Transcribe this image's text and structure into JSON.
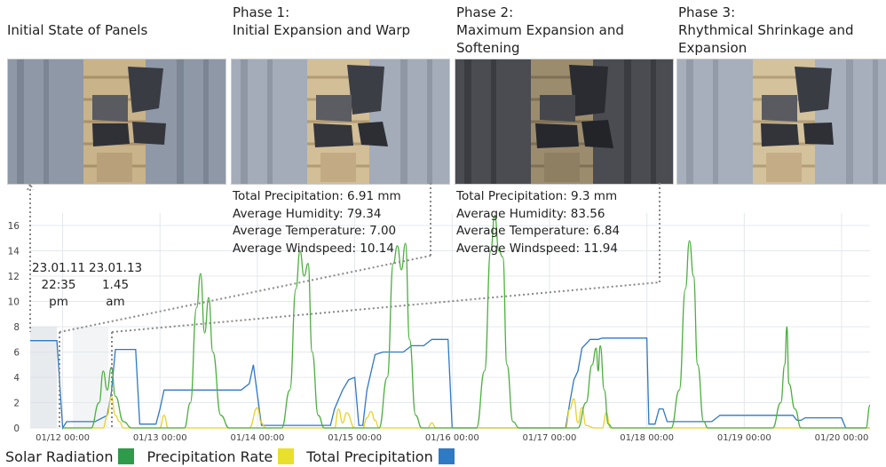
{
  "phases": [
    {
      "title": "Initial State of Panels"
    },
    {
      "title": "Phase 1:\nInitial Expansion and Warp"
    },
    {
      "title": "Phase 2:\nMaximum Expansion and\nSoftening"
    },
    {
      "title": "Phase 3:\nRhythmical Shrinkage and\nExpansion"
    }
  ],
  "stats": [
    {
      "precip": "Total Precipitation: 6.91 mm",
      "humidity": "Average Humidity: 79.34",
      "temperature": "Average Temperature: 7.00",
      "windspeed": "Average Windspeed: 10.14"
    },
    {
      "precip": "Total Precipitation: 9.3 mm",
      "humidity": "Average Humidity: 83.56",
      "temperature": "Average Temperature: 6.84",
      "windspeed": "Average Windspeed: 11.94"
    }
  ],
  "annotations": [
    {
      "line1": "23.01.11",
      "line2": "22:35",
      "line3": "pm"
    },
    {
      "line1": "23.01.13",
      "line2": "1.45",
      "line3": "am"
    }
  ],
  "colors": {
    "solar": "#4caf3f",
    "rate": "#e8d22a",
    "total": "#2f78c4",
    "legend_solar": "#2e9b4a",
    "legend_rate": "#e8e02a",
    "legend_total": "#2f7ac4",
    "grid": "#e4e8ec"
  },
  "legend": [
    {
      "label": "Solar Radiation"
    },
    {
      "label": "Precipitation Rate"
    },
    {
      "label": "Total Precipitation"
    }
  ],
  "chart_data": {
    "type": "line",
    "x_ticks": [
      "01/12 00:00",
      "01/13 00:00",
      "01/14 00:00",
      "01/15 00:00",
      "01/16 00:00",
      "01/17 00:00",
      "01/18 00:00",
      "01/19 00:00",
      "01/20 00:00"
    ],
    "y_ticks": [
      0,
      2,
      4,
      6,
      8,
      10,
      12,
      14,
      16
    ],
    "xlim": [
      "01/11 16:00",
      "01/20 07:00"
    ],
    "ylim": [
      0,
      17
    ],
    "grid": true,
    "shaded_region": [
      "01/11 16:00",
      "01/11 22:35"
    ],
    "series": [
      {
        "name": "Solar Radiation",
        "color_key": "solar",
        "points": [
          [
            "01/12 00:00",
            0
          ],
          [
            "01/12 07:00",
            0
          ],
          [
            "01/12 09:00",
            2
          ],
          [
            "01/12 10:00",
            4.5
          ],
          [
            "01/12 11:00",
            3
          ],
          [
            "01/12 12:00",
            4.8
          ],
          [
            "01/12 13:00",
            2.5
          ],
          [
            "01/12 15:00",
            0.5
          ],
          [
            "01/12 17:00",
            0
          ],
          [
            "01/13 06:00",
            0
          ],
          [
            "01/13 07:30",
            2
          ],
          [
            "01/13 09:00",
            9.5
          ],
          [
            "01/13 10:00",
            12.2
          ],
          [
            "01/13 11:00",
            7.5
          ],
          [
            "01/13 12:00",
            10.3
          ],
          [
            "01/13 13:00",
            6
          ],
          [
            "01/13 15:00",
            1
          ],
          [
            "01/13 17:00",
            0
          ],
          [
            "01/14 06:00",
            0
          ],
          [
            "01/14 08:00",
            3
          ],
          [
            "01/14 09:30",
            11
          ],
          [
            "01/14 10:30",
            14
          ],
          [
            "01/14 11:30",
            12
          ],
          [
            "01/14 12:30",
            13
          ],
          [
            "01/14 13:30",
            6
          ],
          [
            "01/14 15:00",
            1
          ],
          [
            "01/14 16:30",
            0
          ],
          [
            "01/15 06:00",
            0
          ],
          [
            "01/15 08:00",
            4
          ],
          [
            "01/15 09:30",
            13
          ],
          [
            "01/15 10:30",
            14.4
          ],
          [
            "01/15 11:30",
            12.5
          ],
          [
            "01/15 12:30",
            14.6
          ],
          [
            "01/15 13:30",
            7
          ],
          [
            "01/15 15:00",
            1
          ],
          [
            "01/15 16:30",
            0
          ],
          [
            "01/16 06:00",
            0
          ],
          [
            "01/16 08:00",
            4.5
          ],
          [
            "01/16 09:30",
            14
          ],
          [
            "01/16 10:30",
            16.8
          ],
          [
            "01/16 11:30",
            14
          ],
          [
            "01/16 12:30",
            13.5
          ],
          [
            "01/16 13:30",
            5
          ],
          [
            "01/16 15:00",
            0.5
          ],
          [
            "01/16 16:30",
            0
          ],
          [
            "01/17 07:00",
            0
          ],
          [
            "01/17 09:00",
            2
          ],
          [
            "01/17 10:30",
            5
          ],
          [
            "01/17 11:30",
            6.3
          ],
          [
            "01/17 12:00",
            4.5
          ],
          [
            "01/17 12:30",
            6.5
          ],
          [
            "01/17 13:30",
            3
          ],
          [
            "01/17 14:30",
            0.3
          ],
          [
            "01/17 15:30",
            0
          ],
          [
            "01/18 06:00",
            0
          ],
          [
            "01/18 08:00",
            3
          ],
          [
            "01/18 09:30",
            11
          ],
          [
            "01/18 10:30",
            14.8
          ],
          [
            "01/18 11:30",
            12
          ],
          [
            "01/18 12:30",
            5
          ],
          [
            "01/18 14:00",
            0.5
          ],
          [
            "01/18 15:00",
            0
          ],
          [
            "01/19 07:00",
            0
          ],
          [
            "01/19 09:00",
            2
          ],
          [
            "01/19 10:00",
            5
          ],
          [
            "01/19 10:30",
            8
          ],
          [
            "01/19 11:00",
            3.5
          ],
          [
            "01/19 12:30",
            1.5
          ],
          [
            "01/19 14:00",
            0
          ],
          [
            "01/20 06:00",
            0
          ],
          [
            "01/20 07:00",
            1.8
          ]
        ]
      },
      {
        "name": "Precipitation Rate",
        "color_key": "rate",
        "points": [
          [
            "01/12 00:00",
            0
          ],
          [
            "01/12 10:00",
            0
          ],
          [
            "01/12 11:00",
            1
          ],
          [
            "01/12 12:00",
            2.5
          ],
          [
            "01/12 13:00",
            1
          ],
          [
            "01/12 14:00",
            0.5
          ],
          [
            "01/12 15:00",
            0
          ],
          [
            "01/13 00:00",
            0
          ],
          [
            "01/13 01:00",
            1
          ],
          [
            "01/13 02:00",
            0
          ],
          [
            "01/13 22:00",
            0
          ],
          [
            "01/14 00:00",
            1.6
          ],
          [
            "01/14 01:00",
            0.4
          ],
          [
            "01/14 02:00",
            0
          ],
          [
            "01/14 19:00",
            0
          ],
          [
            "01/14 20:00",
            1.5
          ],
          [
            "01/14 21:00",
            0.4
          ],
          [
            "01/14 22:00",
            1.2
          ],
          [
            "01/15 00:00",
            0
          ],
          [
            "01/15 02:00",
            0
          ],
          [
            "01/15 03:00",
            0.8
          ],
          [
            "01/15 04:00",
            1.3
          ],
          [
            "01/15 05:00",
            0.6
          ],
          [
            "01/15 06:00",
            0
          ],
          [
            "01/15 18:00",
            0
          ],
          [
            "01/15 19:00",
            0.4
          ],
          [
            "01/15 20:00",
            0
          ],
          [
            "01/17 04:00",
            0
          ],
          [
            "01/17 05:00",
            1.5
          ],
          [
            "01/17 06:00",
            2.3
          ],
          [
            "01/17 07:00",
            0.4
          ],
          [
            "01/17 08:00",
            1.6
          ],
          [
            "01/17 09:00",
            0.2
          ],
          [
            "01/17 11:00",
            0
          ],
          [
            "01/17 13:00",
            0
          ],
          [
            "01/17 14:00",
            1.2
          ],
          [
            "01/17 15:00",
            0
          ],
          [
            "01/20 07:00",
            0
          ]
        ]
      },
      {
        "name": "Total Precipitation",
        "color_key": "total",
        "points": [
          [
            "01/11 16:00",
            6.9
          ],
          [
            "01/11 22:35",
            6.9
          ],
          [
            "01/12 00:00",
            0
          ],
          [
            "01/12 01:00",
            0.5
          ],
          [
            "01/12 08:00",
            0.5
          ],
          [
            "01/12 11:00",
            1
          ],
          [
            "01/12 12:00",
            2.8
          ],
          [
            "01/12 13:00",
            6.2
          ],
          [
            "01/12 18:00",
            6.2
          ],
          [
            "01/12 19:00",
            0.3
          ],
          [
            "01/12 23:00",
            0.3
          ],
          [
            "01/13 00:00",
            1.5
          ],
          [
            "01/13 01:00",
            3
          ],
          [
            "01/13 20:00",
            3
          ],
          [
            "01/13 22:00",
            3.5
          ],
          [
            "01/13 23:00",
            5
          ],
          [
            "01/14 01:00",
            0.2
          ],
          [
            "01/14 18:00",
            0.2
          ],
          [
            "01/14 19:00",
            1.5
          ],
          [
            "01/14 21:00",
            3
          ],
          [
            "01/14 22:30",
            3.8
          ],
          [
            "01/15 00:00",
            4
          ],
          [
            "01/15 01:00",
            0.2
          ],
          [
            "01/15 02:00",
            0.2
          ],
          [
            "01/15 03:00",
            3
          ],
          [
            "01/15 05:00",
            5.8
          ],
          [
            "01/15 07:00",
            6
          ],
          [
            "01/15 12:00",
            6
          ],
          [
            "01/15 14:00",
            6.5
          ],
          [
            "01/15 17:00",
            6.5
          ],
          [
            "01/15 19:00",
            7
          ],
          [
            "01/15 23:00",
            7
          ],
          [
            "01/16 00:00",
            0
          ],
          [
            "01/17 04:00",
            0
          ],
          [
            "01/17 05:00",
            2
          ],
          [
            "01/17 06:00",
            3.8
          ],
          [
            "01/17 07:00",
            4.5
          ],
          [
            "01/17 08:00",
            6.3
          ],
          [
            "01/17 10:00",
            7
          ],
          [
            "01/17 12:00",
            7
          ],
          [
            "01/17 13:00",
            7.1
          ],
          [
            "01/18 00:00",
            7.1
          ],
          [
            "01/18 00:30",
            0.3
          ],
          [
            "01/18 02:00",
            0.3
          ],
          [
            "01/18 03:00",
            1.5
          ],
          [
            "01/18 04:00",
            1.5
          ],
          [
            "01/18 05:00",
            0.5
          ],
          [
            "01/18 16:00",
            0.5
          ],
          [
            "01/18 18:00",
            1
          ],
          [
            "01/19 00:00",
            1
          ],
          [
            "01/19 12:00",
            1
          ],
          [
            "01/19 13:00",
            0.6
          ],
          [
            "01/19 14:00",
            0.6
          ],
          [
            "01/19 15:00",
            0.8
          ],
          [
            "01/20 00:00",
            0.8
          ],
          [
            "01/20 01:00",
            0
          ],
          [
            "01/20 07:00",
            0
          ]
        ]
      }
    ]
  }
}
